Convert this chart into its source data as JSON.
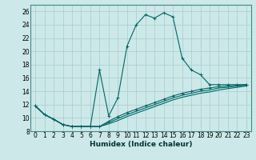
{
  "xlabel": "Humidex (Indice chaleur)",
  "bg_color": "#cce8e8",
  "grid_color": "#aacccc",
  "line_color": "#006666",
  "xlim": [
    -0.5,
    23.5
  ],
  "ylim": [
    8,
    27
  ],
  "xticks": [
    0,
    1,
    2,
    3,
    4,
    5,
    6,
    7,
    8,
    9,
    10,
    11,
    12,
    13,
    14,
    15,
    16,
    17,
    18,
    19,
    20,
    21,
    22,
    23
  ],
  "yticks": [
    8,
    10,
    12,
    14,
    16,
    18,
    20,
    22,
    24,
    26
  ],
  "main_x": [
    0,
    1,
    2,
    3,
    4,
    5,
    6,
    7,
    8,
    9,
    10,
    11,
    12,
    13,
    14,
    15,
    16,
    17,
    18,
    19,
    20,
    21,
    22,
    23
  ],
  "main_y": [
    11.8,
    10.5,
    9.8,
    9.0,
    8.7,
    8.7,
    8.7,
    17.2,
    10.3,
    13.0,
    20.8,
    24.0,
    25.5,
    25.0,
    25.8,
    25.2,
    19.0,
    17.2,
    16.5,
    15.0,
    15.0,
    15.0,
    15.0,
    15.0
  ],
  "line2_x": [
    0,
    1,
    2,
    3,
    4,
    5,
    6,
    7,
    8,
    9,
    10,
    11,
    12,
    13,
    14,
    15,
    16,
    17,
    18,
    19,
    20,
    21,
    22,
    23
  ],
  "line2_y": [
    11.8,
    10.5,
    9.8,
    9.0,
    8.7,
    8.7,
    8.7,
    8.7,
    9.5,
    10.2,
    10.8,
    11.3,
    11.8,
    12.3,
    12.8,
    13.3,
    13.7,
    14.0,
    14.3,
    14.5,
    14.7,
    14.8,
    14.9,
    15.0
  ],
  "line3_x": [
    0,
    1,
    2,
    3,
    4,
    5,
    6,
    7,
    8,
    9,
    10,
    11,
    12,
    13,
    14,
    15,
    16,
    17,
    18,
    19,
    20,
    21,
    22,
    23
  ],
  "line3_y": [
    11.8,
    10.5,
    9.8,
    9.0,
    8.7,
    8.7,
    8.7,
    8.7,
    9.3,
    9.9,
    10.5,
    11.0,
    11.5,
    12.0,
    12.5,
    13.0,
    13.4,
    13.7,
    14.0,
    14.2,
    14.5,
    14.6,
    14.8,
    14.9
  ],
  "line4_x": [
    0,
    1,
    2,
    3,
    4,
    5,
    6,
    7,
    8,
    9,
    10,
    11,
    12,
    13,
    14,
    15,
    16,
    17,
    18,
    19,
    20,
    21,
    22,
    23
  ],
  "line4_y": [
    11.8,
    10.5,
    9.8,
    9.0,
    8.7,
    8.7,
    8.7,
    8.7,
    9.1,
    9.6,
    10.2,
    10.7,
    11.2,
    11.7,
    12.2,
    12.7,
    13.1,
    13.4,
    13.7,
    13.9,
    14.2,
    14.4,
    14.6,
    14.8
  ],
  "tick_fontsize": 5.5,
  "xlabel_fontsize": 6.5
}
